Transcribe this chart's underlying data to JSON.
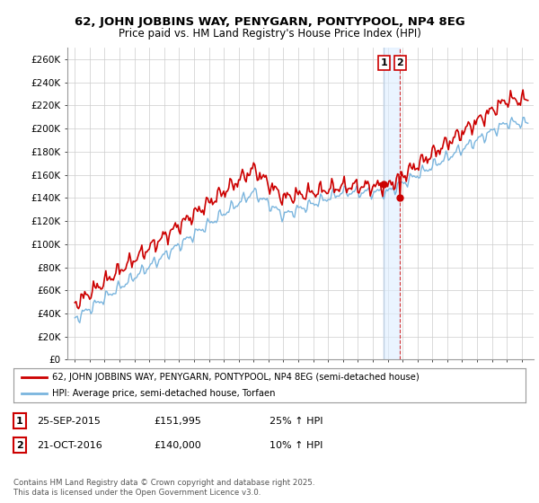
{
  "title": "62, JOHN JOBBINS WAY, PENYGARN, PONTYPOOL, NP4 8EG",
  "subtitle": "Price paid vs. HM Land Registry's House Price Index (HPI)",
  "ylim": [
    0,
    270000
  ],
  "yticks": [
    0,
    20000,
    40000,
    60000,
    80000,
    100000,
    120000,
    140000,
    160000,
    180000,
    200000,
    220000,
    240000,
    260000
  ],
  "ytick_labels": [
    "£0",
    "£20K",
    "£40K",
    "£60K",
    "£80K",
    "£100K",
    "£120K",
    "£140K",
    "£160K",
    "£180K",
    "£200K",
    "£220K",
    "£240K",
    "£260K"
  ],
  "hpi_color": "#7ab5de",
  "price_color": "#cc0000",
  "vline1_color": "#bbccdd",
  "vline2_color": "#cc0000",
  "band_color": "#ddeeff",
  "marker1_date": 2015.75,
  "marker2_date": 2016.83,
  "legend_line1": "62, JOHN JOBBINS WAY, PENYGARN, PONTYPOOL, NP4 8EG (semi-detached house)",
  "legend_line2": "HPI: Average price, semi-detached house, Torfaen",
  "table_row1": [
    "1",
    "25-SEP-2015",
    "£151,995",
    "25% ↑ HPI"
  ],
  "table_row2": [
    "2",
    "21-OCT-2016",
    "£140,000",
    "10% ↑ HPI"
  ],
  "footnote": "Contains HM Land Registry data © Crown copyright and database right 2025.\nThis data is licensed under the Open Government Licence v3.0.",
  "background_color": "#ffffff",
  "grid_color": "#cccccc"
}
